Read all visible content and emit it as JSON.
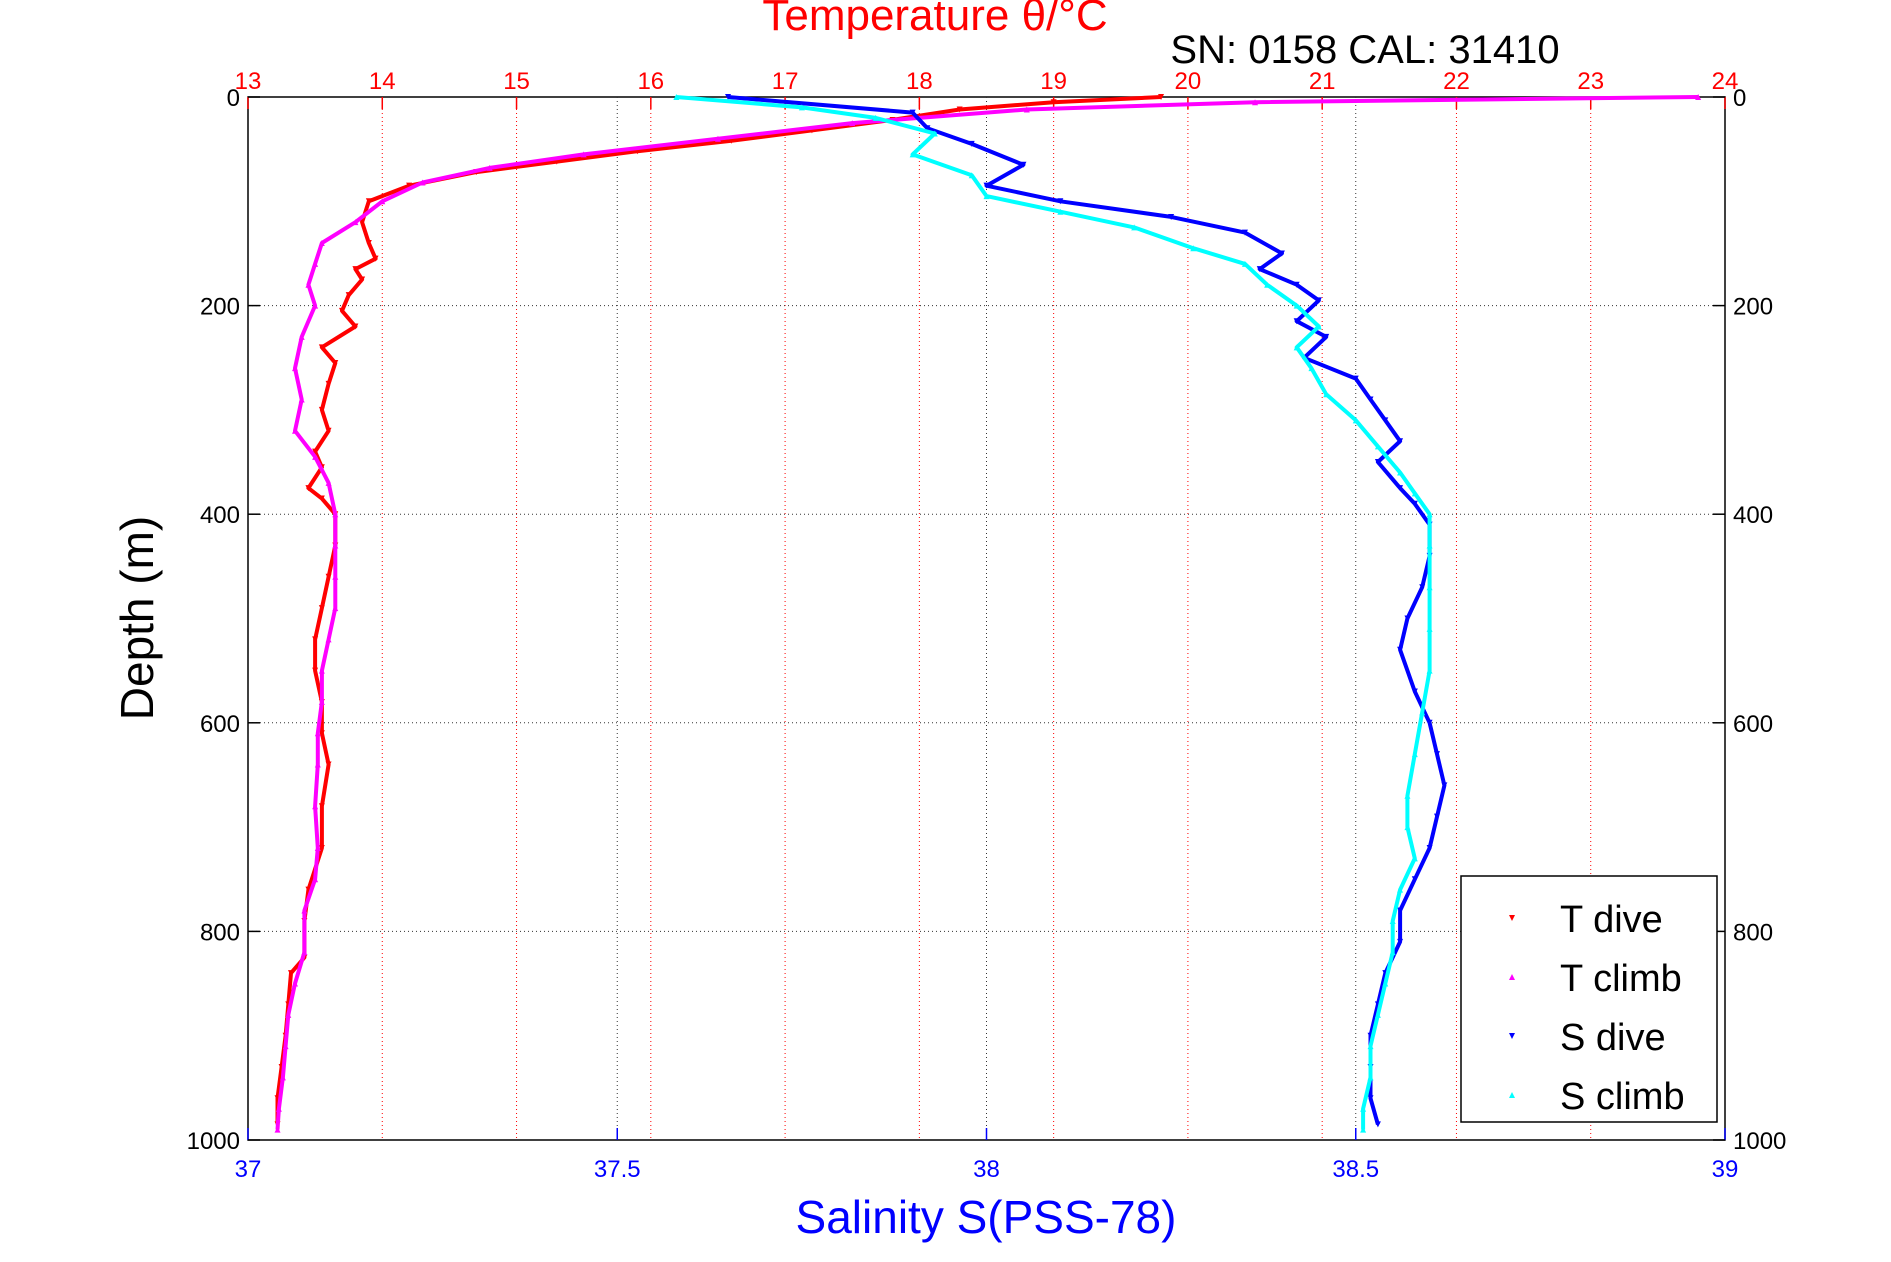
{
  "chart_data": {
    "type": "line",
    "title": "Temperature θ/°C",
    "annotation": "SN: 0158  CAL: 31410",
    "xlabel": "Salinity S(PSS-78)",
    "ylabel": "Depth (m)",
    "x_axis_bottom": {
      "label": "Salinity S(PSS-78)",
      "range": [
        37,
        39
      ],
      "ticks": [
        "37",
        "37.5",
        "38",
        "38.5",
        "39"
      ],
      "color": "#0000ff"
    },
    "x_axis_top": {
      "label": "Temperature θ/°C",
      "range": [
        13,
        24
      ],
      "ticks": [
        "13",
        "14",
        "15",
        "16",
        "17",
        "18",
        "19",
        "20",
        "21",
        "22",
        "23",
        "24"
      ],
      "color": "#ff0000"
    },
    "y_axis": {
      "label": "Depth (m)",
      "range": [
        0,
        1000
      ],
      "reversed": true,
      "ticks": [
        "0",
        "200",
        "400",
        "600",
        "800",
        "1000"
      ]
    },
    "grid": true,
    "legend_position": "bottom-right",
    "series": [
      {
        "name": "T dive",
        "axis": "temperature",
        "color": "#ff0000",
        "marker": "triangle-down",
        "points": [
          [
            19.8,
            0
          ],
          [
            19.0,
            5
          ],
          [
            18.3,
            12
          ],
          [
            17.8,
            22
          ],
          [
            17.2,
            32
          ],
          [
            16.6,
            42
          ],
          [
            15.9,
            52
          ],
          [
            15.3,
            62
          ],
          [
            14.7,
            72
          ],
          [
            14.2,
            85
          ],
          [
            13.9,
            100
          ],
          [
            13.85,
            120
          ],
          [
            13.9,
            140
          ],
          [
            13.95,
            155
          ],
          [
            13.8,
            165
          ],
          [
            13.85,
            175
          ],
          [
            13.75,
            190
          ],
          [
            13.7,
            205
          ],
          [
            13.8,
            220
          ],
          [
            13.55,
            240
          ],
          [
            13.65,
            255
          ],
          [
            13.6,
            275
          ],
          [
            13.55,
            300
          ],
          [
            13.6,
            320
          ],
          [
            13.5,
            340
          ],
          [
            13.55,
            355
          ],
          [
            13.45,
            375
          ],
          [
            13.55,
            385
          ],
          [
            13.65,
            400
          ],
          [
            13.65,
            430
          ],
          [
            13.6,
            460
          ],
          [
            13.55,
            490
          ],
          [
            13.5,
            520
          ],
          [
            13.5,
            550
          ],
          [
            13.55,
            580
          ],
          [
            13.55,
            610
          ],
          [
            13.6,
            640
          ],
          [
            13.55,
            680
          ],
          [
            13.55,
            720
          ],
          [
            13.45,
            760
          ],
          [
            13.42,
            790
          ],
          [
            13.42,
            825
          ],
          [
            13.32,
            840
          ],
          [
            13.3,
            870
          ],
          [
            13.28,
            900
          ],
          [
            13.25,
            930
          ],
          [
            13.22,
            960
          ],
          [
            13.22,
            985
          ]
        ]
      },
      {
        "name": "T climb",
        "axis": "temperature",
        "color": "#ff00ff",
        "marker": "triangle-up",
        "points": [
          [
            23.8,
            0
          ],
          [
            20.5,
            5
          ],
          [
            18.8,
            12
          ],
          [
            17.5,
            25
          ],
          [
            16.5,
            40
          ],
          [
            15.5,
            55
          ],
          [
            14.8,
            68
          ],
          [
            14.3,
            82
          ],
          [
            14.0,
            100
          ],
          [
            13.8,
            120
          ],
          [
            13.55,
            140
          ],
          [
            13.5,
            160
          ],
          [
            13.45,
            180
          ],
          [
            13.5,
            200
          ],
          [
            13.4,
            230
          ],
          [
            13.35,
            260
          ],
          [
            13.4,
            290
          ],
          [
            13.35,
            320
          ],
          [
            13.5,
            345
          ],
          [
            13.6,
            370
          ],
          [
            13.65,
            400
          ],
          [
            13.65,
            430
          ],
          [
            13.65,
            460
          ],
          [
            13.65,
            490
          ],
          [
            13.6,
            520
          ],
          [
            13.55,
            550
          ],
          [
            13.55,
            580
          ],
          [
            13.52,
            610
          ],
          [
            13.52,
            640
          ],
          [
            13.5,
            680
          ],
          [
            13.52,
            720
          ],
          [
            13.5,
            750
          ],
          [
            13.42,
            780
          ],
          [
            13.42,
            820
          ],
          [
            13.35,
            850
          ],
          [
            13.3,
            880
          ],
          [
            13.28,
            910
          ],
          [
            13.26,
            940
          ],
          [
            13.23,
            970
          ],
          [
            13.22,
            990
          ]
        ]
      },
      {
        "name": "S dive",
        "axis": "salinity",
        "color": "#0000ff",
        "marker": "triangle-down",
        "points": [
          [
            37.65,
            0
          ],
          [
            37.9,
            15
          ],
          [
            37.92,
            30
          ],
          [
            37.98,
            45
          ],
          [
            38.05,
            65
          ],
          [
            38.0,
            85
          ],
          [
            38.1,
            100
          ],
          [
            38.25,
            115
          ],
          [
            38.35,
            130
          ],
          [
            38.4,
            150
          ],
          [
            38.37,
            165
          ],
          [
            38.42,
            180
          ],
          [
            38.45,
            195
          ],
          [
            38.42,
            215
          ],
          [
            38.46,
            230
          ],
          [
            38.43,
            250
          ],
          [
            38.5,
            270
          ],
          [
            38.52,
            290
          ],
          [
            38.54,
            310
          ],
          [
            38.56,
            330
          ],
          [
            38.53,
            350
          ],
          [
            38.56,
            375
          ],
          [
            38.58,
            390
          ],
          [
            38.6,
            410
          ],
          [
            38.6,
            440
          ],
          [
            38.59,
            470
          ],
          [
            38.57,
            500
          ],
          [
            38.56,
            530
          ],
          [
            38.58,
            570
          ],
          [
            38.6,
            600
          ],
          [
            38.61,
            630
          ],
          [
            38.62,
            660
          ],
          [
            38.61,
            690
          ],
          [
            38.6,
            720
          ],
          [
            38.58,
            750
          ],
          [
            38.56,
            780
          ],
          [
            38.56,
            810
          ],
          [
            38.54,
            840
          ],
          [
            38.53,
            870
          ],
          [
            38.52,
            900
          ],
          [
            38.52,
            930
          ],
          [
            38.52,
            960
          ],
          [
            38.53,
            985
          ]
        ]
      },
      {
        "name": "S climb",
        "axis": "salinity",
        "color": "#00ffff",
        "marker": "triangle-up",
        "points": [
          [
            37.58,
            0
          ],
          [
            37.75,
            10
          ],
          [
            37.85,
            20
          ],
          [
            37.93,
            35
          ],
          [
            37.9,
            55
          ],
          [
            37.98,
            75
          ],
          [
            38.0,
            95
          ],
          [
            38.1,
            110
          ],
          [
            38.2,
            125
          ],
          [
            38.28,
            145
          ],
          [
            38.35,
            160
          ],
          [
            38.38,
            180
          ],
          [
            38.42,
            200
          ],
          [
            38.45,
            220
          ],
          [
            38.42,
            240
          ],
          [
            38.44,
            260
          ],
          [
            38.46,
            285
          ],
          [
            38.5,
            310
          ],
          [
            38.53,
            335
          ],
          [
            38.56,
            360
          ],
          [
            38.58,
            380
          ],
          [
            38.6,
            400
          ],
          [
            38.6,
            430
          ],
          [
            38.6,
            470
          ],
          [
            38.6,
            510
          ],
          [
            38.6,
            550
          ],
          [
            38.59,
            590
          ],
          [
            38.58,
            630
          ],
          [
            38.57,
            670
          ],
          [
            38.57,
            700
          ],
          [
            38.58,
            730
          ],
          [
            38.56,
            760
          ],
          [
            38.55,
            790
          ],
          [
            38.55,
            820
          ],
          [
            38.54,
            850
          ],
          [
            38.53,
            880
          ],
          [
            38.52,
            910
          ],
          [
            38.52,
            940
          ],
          [
            38.51,
            970
          ],
          [
            38.51,
            990
          ]
        ]
      }
    ]
  }
}
